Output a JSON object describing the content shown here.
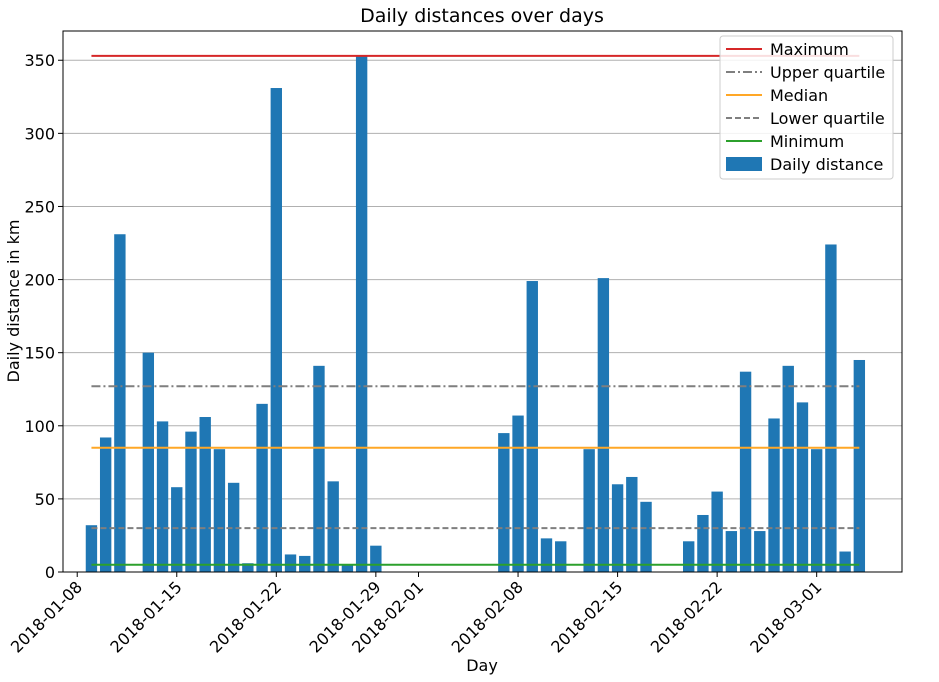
{
  "chart_data": {
    "type": "bar",
    "title": "Daily distances over days",
    "xlabel": "Day",
    "ylabel": "Daily distance in km",
    "ylim": [
      0,
      370
    ],
    "xlim": [
      "2018-01-07",
      "2018-03-07"
    ],
    "grid": "y",
    "legend_position": "top-right",
    "x_ticks": [
      "2018-01-08",
      "2018-01-15",
      "2018-01-22",
      "2018-01-29",
      "2018-02-01",
      "2018-02-08",
      "2018-02-15",
      "2018-02-22",
      "2018-03-01"
    ],
    "y_ticks": [
      0,
      50,
      100,
      150,
      200,
      250,
      300,
      350
    ],
    "bars": {
      "name": "Daily distance",
      "color": "#1f77b4",
      "dates": [
        "2018-01-09",
        "2018-01-10",
        "2018-01-11",
        "2018-01-13",
        "2018-01-14",
        "2018-01-15",
        "2018-01-16",
        "2018-01-17",
        "2018-01-18",
        "2018-01-19",
        "2018-01-20",
        "2018-01-21",
        "2018-01-22",
        "2018-01-23",
        "2018-01-24",
        "2018-01-25",
        "2018-01-26",
        "2018-01-27",
        "2018-01-28",
        "2018-01-29",
        "2018-02-07",
        "2018-02-08",
        "2018-02-09",
        "2018-02-10",
        "2018-02-11",
        "2018-02-13",
        "2018-02-14",
        "2018-02-15",
        "2018-02-16",
        "2018-02-17",
        "2018-02-20",
        "2018-02-21",
        "2018-02-22",
        "2018-02-23",
        "2018-02-24",
        "2018-02-25",
        "2018-02-26",
        "2018-02-27",
        "2018-02-28",
        "2018-03-01",
        "2018-03-02",
        "2018-03-03",
        "2018-03-04"
      ],
      "values": [
        32,
        92,
        231,
        150,
        103,
        58,
        96,
        106,
        84,
        61,
        6,
        115,
        331,
        12,
        11,
        141,
        62,
        5,
        353,
        18,
        95,
        107,
        199,
        23,
        21,
        84,
        201,
        60,
        65,
        48,
        21,
        39,
        55,
        28,
        137,
        28,
        105,
        141,
        116,
        84,
        224,
        14,
        145
      ]
    },
    "lines": [
      {
        "name": "Maximum",
        "value": 353,
        "color": "#d62728",
        "dash": "solid"
      },
      {
        "name": "Upper quartile",
        "value": 127,
        "color": "#7f7f7f",
        "dash": "dashdot"
      },
      {
        "name": "Median",
        "value": 85,
        "color": "#ffa726",
        "dash": "solid"
      },
      {
        "name": "Lower quartile",
        "value": 30,
        "color": "#7f7f7f",
        "dash": "dashed"
      },
      {
        "name": "Minimum",
        "value": 5,
        "color": "#2ca02c",
        "dash": "solid"
      }
    ],
    "line_span": [
      "2018-01-09",
      "2018-03-04"
    ]
  }
}
